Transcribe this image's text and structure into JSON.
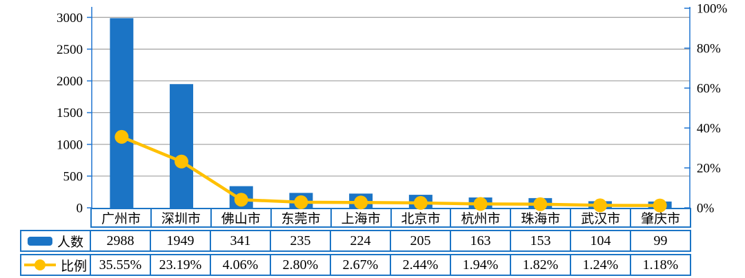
{
  "chart_data": {
    "type": "bar",
    "subtype": "pareto-combo-with-data-table",
    "title": "",
    "categories": [
      "广州市",
      "深圳市",
      "佛山市",
      "东莞市",
      "上海市",
      "北京市",
      "杭州市",
      "珠海市",
      "武汉市",
      "肇庆市"
    ],
    "series": [
      {
        "name": "人数",
        "type": "bar",
        "axis": "left",
        "values": [
          2988,
          1949,
          341,
          235,
          224,
          205,
          163,
          153,
          104,
          99
        ]
      },
      {
        "name": "比例",
        "type": "line",
        "axis": "right",
        "values": [
          35.55,
          23.19,
          4.06,
          2.8,
          2.67,
          2.44,
          1.94,
          1.82,
          1.24,
          1.18
        ],
        "labels": [
          "35.55%",
          "23.19%",
          "4.06%",
          "2.80%",
          "2.67%",
          "2.44%",
          "1.94%",
          "1.82%",
          "1.24%",
          "1.18%"
        ]
      }
    ],
    "left_axis": {
      "min": 0,
      "max": 3000,
      "step": 500,
      "tick_labels": [
        "3000",
        "2500",
        "2000",
        "1500",
        "1000",
        "500",
        "0"
      ]
    },
    "right_axis": {
      "min": 0,
      "max": 100,
      "step": 20,
      "tick_labels": [
        "100%",
        "80%",
        "60%",
        "40%",
        "20%",
        "0%"
      ]
    },
    "grid": true,
    "legend_position": "table-left-column",
    "colors": {
      "bar": "#1B74C5",
      "line": "#FFC000",
      "grid": "#A8A8A8",
      "axis": "#2B7CD3",
      "table_border": "#1B74C5",
      "text": "#000000"
    }
  }
}
